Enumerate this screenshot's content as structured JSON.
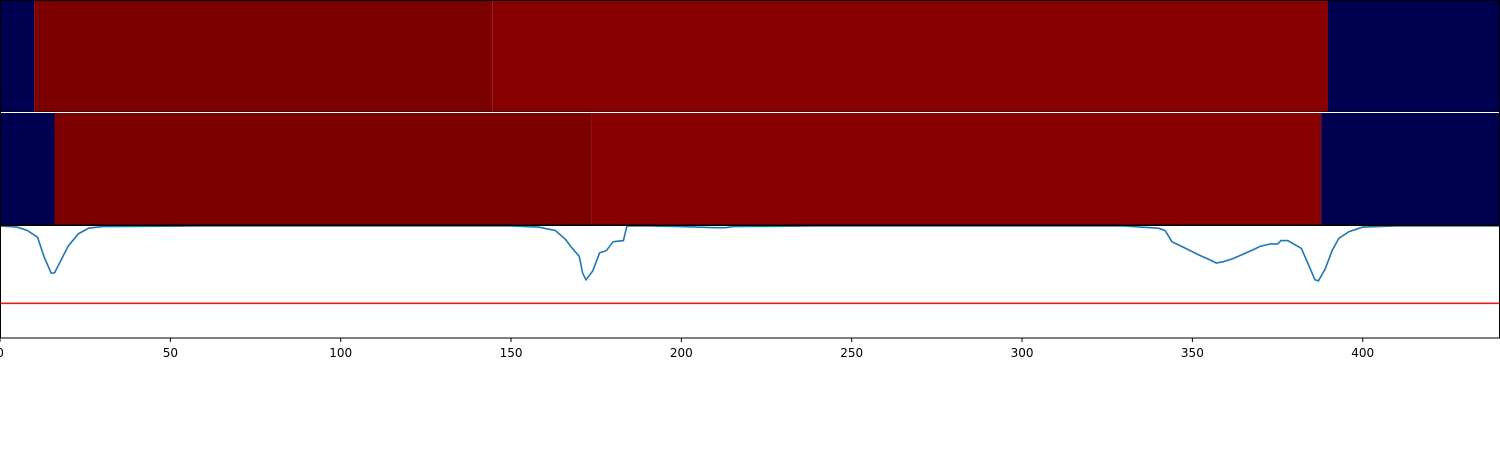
{
  "chart_data": {
    "type": "heatmap",
    "title": "",
    "xlabel": "",
    "ylabel": "",
    "xlim": [
      0,
      440
    ],
    "x_ticks": [
      0,
      50,
      100,
      150,
      200,
      250,
      300,
      350,
      400
    ],
    "x_tick_labels": [
      "0",
      "50",
      "100",
      "150",
      "200",
      "250",
      "300",
      "350",
      "400"
    ],
    "legend": false,
    "grid": false,
    "heatmap_rows": [
      {
        "segments": [
          {
            "start": 0,
            "end": 10,
            "color": "#000050"
          },
          {
            "start": 10,
            "end": 144.5,
            "color": "#7d0000"
          },
          {
            "start": 144.5,
            "end": 389.8,
            "color": "#890000"
          },
          {
            "start": 389.8,
            "end": 440,
            "color": "#000050"
          }
        ]
      },
      {
        "segments": [
          {
            "start": 0,
            "end": 16,
            "color": "#000050"
          },
          {
            "start": 16,
            "end": 173.5,
            "color": "#7d0000"
          },
          {
            "start": 173.5,
            "end": 387.8,
            "color": "#890000"
          },
          {
            "start": 387.8,
            "end": 440,
            "color": "#000050"
          }
        ]
      }
    ],
    "line_panel": {
      "ylim": [
        0,
        1
      ],
      "series": [
        {
          "color": "#1f77b4",
          "points": [
            [
              0,
              1.0
            ],
            [
              5,
              0.99
            ],
            [
              8,
              0.96
            ],
            [
              11,
              0.9
            ],
            [
              13,
              0.72
            ],
            [
              15,
              0.58
            ],
            [
              16,
              0.58
            ],
            [
              18,
              0.7
            ],
            [
              20,
              0.82
            ],
            [
              23,
              0.93
            ],
            [
              26,
              0.98
            ],
            [
              30,
              0.995
            ],
            [
              60,
              1.0
            ],
            [
              150,
              1.0
            ],
            [
              158,
              0.99
            ],
            [
              163,
              0.96
            ],
            [
              166,
              0.88
            ],
            [
              168,
              0.8
            ],
            [
              170,
              0.73
            ],
            [
              171,
              0.58
            ],
            [
              172,
              0.52
            ],
            [
              174,
              0.6
            ],
            [
              176,
              0.76
            ],
            [
              178,
              0.78
            ],
            [
              180,
              0.86
            ],
            [
              183,
              0.87
            ],
            [
              184,
              1.0
            ],
            [
              190,
              1.0
            ],
            [
              200,
              0.995
            ],
            [
              210,
              0.985
            ],
            [
              213,
              0.985
            ],
            [
              215,
              0.995
            ],
            [
              240,
              1.0
            ],
            [
              300,
              1.0
            ],
            [
              330,
              1.0
            ],
            [
              340,
              0.98
            ],
            [
              342,
              0.96
            ],
            [
              344,
              0.86
            ],
            [
              348,
              0.8
            ],
            [
              352,
              0.74
            ],
            [
              355,
              0.7
            ],
            [
              357,
              0.67
            ],
            [
              359,
              0.68
            ],
            [
              362,
              0.71
            ],
            [
              365,
              0.75
            ],
            [
              368,
              0.79
            ],
            [
              370,
              0.82
            ],
            [
              373,
              0.84
            ],
            [
              375,
              0.84
            ],
            [
              376,
              0.87
            ],
            [
              378,
              0.87
            ],
            [
              382,
              0.8
            ],
            [
              384,
              0.66
            ],
            [
              386,
              0.52
            ],
            [
              387,
              0.51
            ],
            [
              389,
              0.62
            ],
            [
              391,
              0.78
            ],
            [
              393,
              0.89
            ],
            [
              396,
              0.95
            ],
            [
              400,
              0.99
            ],
            [
              410,
              1.0
            ],
            [
              440,
              1.0
            ]
          ]
        },
        {
          "color": "#e3201b",
          "points": [
            [
              0,
              0.31
            ],
            [
              440,
              0.31
            ]
          ]
        }
      ]
    }
  }
}
